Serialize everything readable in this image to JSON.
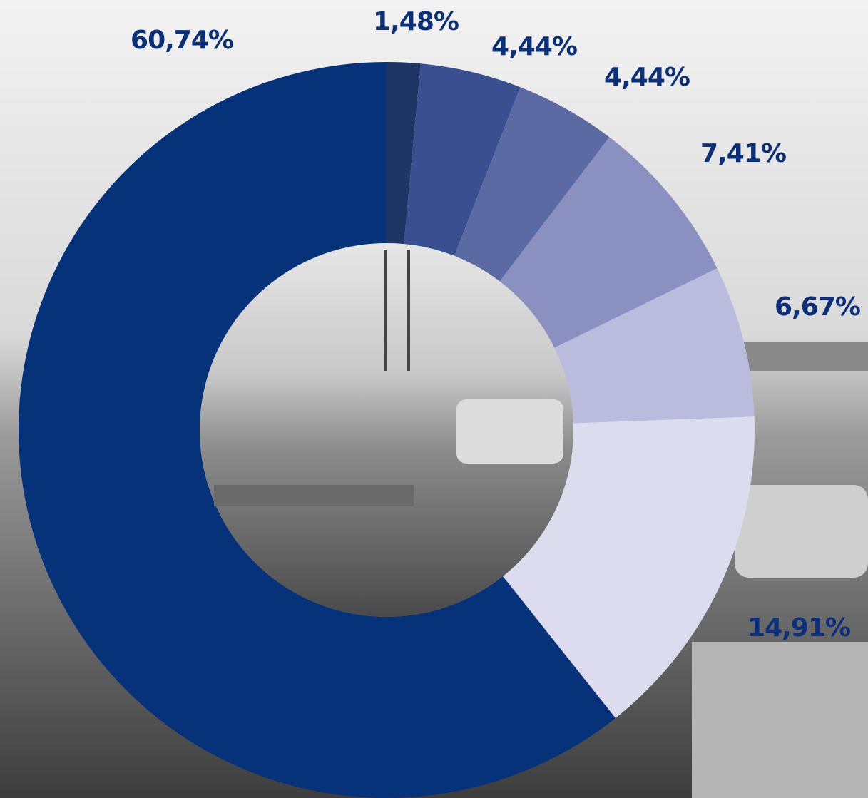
{
  "chart_data": {
    "type": "pie",
    "values": [
      1.48,
      4.44,
      4.44,
      7.41,
      6.67,
      14.91,
      60.74
    ],
    "value_labels": [
      "1,48%",
      "4,44%",
      "4,44%",
      "7,41%",
      "6,67%",
      "14,91%",
      "60,74%"
    ],
    "colors": [
      "#1f3564",
      "#3a4f8f",
      "#5c6aa3",
      "#8a90c0",
      "#b9bcdc",
      "#dcdcee",
      "#06327a"
    ],
    "donut": true
  }
}
